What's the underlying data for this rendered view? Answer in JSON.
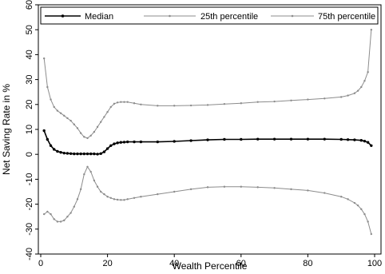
{
  "chart_data": {
    "type": "line",
    "title": "",
    "xlabel": "Wealth Percentile",
    "ylabel": "Net Saving Rate in %",
    "xlim": [
      0,
      100
    ],
    "ylim": [
      -40,
      60
    ],
    "xticks": [
      "0",
      "20",
      "40",
      "60",
      "80",
      "100"
    ],
    "yticks": [
      "-40",
      "-30",
      "-20",
      "-10",
      "0",
      "10",
      "20",
      "30",
      "40",
      "50",
      "60"
    ],
    "legend_position": "top",
    "grid": false,
    "series": [
      {
        "name": "Median",
        "color": "#000000",
        "x": [
          1,
          2,
          3,
          4,
          5,
          6,
          7,
          8,
          9,
          10,
          11,
          12,
          13,
          14,
          15,
          16,
          17,
          18,
          19,
          20,
          21,
          22,
          23,
          24,
          25,
          26,
          28,
          30,
          35,
          40,
          45,
          50,
          55,
          60,
          65,
          70,
          75,
          80,
          85,
          90,
          92,
          94,
          96,
          97,
          98,
          99
        ],
        "y": [
          9.5,
          6,
          3.5,
          2,
          1.2,
          0.8,
          0.5,
          0.4,
          0.3,
          0.2,
          0.2,
          0.2,
          0.2,
          0.2,
          0.2,
          0.2,
          0.1,
          0.3,
          1,
          2.3,
          3.5,
          4.2,
          4.6,
          4.8,
          4.9,
          5,
          5,
          5,
          5,
          5.2,
          5.5,
          5.8,
          6,
          6,
          6.1,
          6.1,
          6.1,
          6.1,
          6.1,
          6,
          5.9,
          5.8,
          5.6,
          5.3,
          4.8,
          3.5
        ]
      },
      {
        "name": "25th percentile",
        "color": "#8c8c8c",
        "x": [
          1,
          2,
          3,
          4,
          5,
          6,
          7,
          8,
          9,
          10,
          11,
          12,
          13,
          14,
          15,
          16,
          17,
          18,
          19,
          20,
          21,
          22,
          23,
          24,
          25,
          26,
          28,
          30,
          35,
          40,
          45,
          50,
          55,
          60,
          65,
          70,
          75,
          80,
          85,
          90,
          92,
          94,
          95,
          96,
          97,
          98,
          99
        ],
        "y": [
          -24,
          -23,
          -24,
          -26,
          -27,
          -27,
          -26.5,
          -25,
          -23.5,
          -21,
          -18,
          -14,
          -8,
          -5,
          -7,
          -10.5,
          -13,
          -15,
          -16,
          -17,
          -17.5,
          -18,
          -18.2,
          -18.3,
          -18.3,
          -18,
          -17.5,
          -17,
          -16,
          -15,
          -14,
          -13.2,
          -13,
          -13,
          -13.2,
          -13.5,
          -14,
          -14.5,
          -15.5,
          -17,
          -18,
          -19.5,
          -20.5,
          -22,
          -24,
          -27,
          -32
        ]
      },
      {
        "name": "75th percentile",
        "color": "#8c8c8c",
        "x": [
          1,
          2,
          3,
          4,
          5,
          6,
          7,
          8,
          9,
          10,
          11,
          12,
          13,
          14,
          15,
          16,
          17,
          18,
          19,
          20,
          21,
          22,
          23,
          24,
          25,
          26,
          28,
          30,
          35,
          40,
          45,
          50,
          55,
          60,
          65,
          70,
          75,
          80,
          85,
          90,
          92,
          94,
          95,
          96,
          97,
          98,
          99
        ],
        "y": [
          38.5,
          27,
          22,
          19,
          17.5,
          16.5,
          15.5,
          14.5,
          13.5,
          12,
          10.5,
          8.5,
          7,
          6.5,
          7.5,
          9,
          11,
          13,
          15,
          17,
          19,
          20.3,
          20.8,
          21,
          21,
          21,
          20.5,
          20,
          19.5,
          19.5,
          19.6,
          19.8,
          20.2,
          20.5,
          21,
          21.2,
          21.6,
          22,
          22.4,
          23,
          23.6,
          24.5,
          25.5,
          27,
          29.5,
          33,
          50
        ]
      }
    ]
  }
}
